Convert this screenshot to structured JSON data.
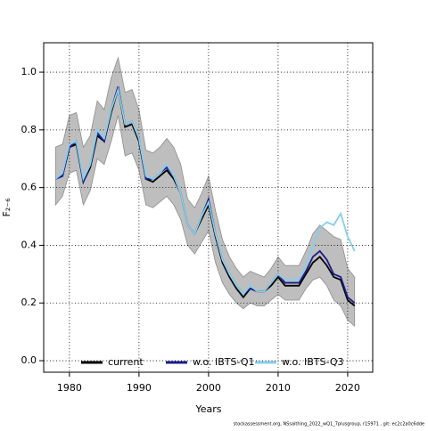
{
  "chart_data": {
    "type": "line",
    "xlabel": "Years",
    "ylabel": "F₂₋₆",
    "footer": "stockassessment.org, NSsaithing_2022_wQ1_7plusgroup, r15971 , git: ec2c2a0c6dde",
    "x": [
      1978,
      1979,
      1980,
      1981,
      1982,
      1983,
      1984,
      1985,
      1986,
      1987,
      1988,
      1989,
      1990,
      1991,
      1992,
      1993,
      1994,
      1995,
      1996,
      1997,
      1998,
      1999,
      2000,
      2001,
      2002,
      2003,
      2004,
      2005,
      2006,
      2007,
      2008,
      2009,
      2010,
      2011,
      2012,
      2013,
      2014,
      2015,
      2016,
      2017,
      2018,
      2019,
      2020,
      2021
    ],
    "xlim": [
      1976.3,
      2023.6
    ],
    "xticks": [
      1980,
      1990,
      2000,
      2010,
      2020
    ],
    "ylim": [
      -0.04,
      1.102
    ],
    "yticks": [
      {
        "value": 0,
        "label": "0.0"
      },
      {
        "value": 0.2,
        "label": "0.2"
      },
      {
        "value": 0.4,
        "label": "0.4"
      },
      {
        "value": 0.6,
        "label": "0.6"
      },
      {
        "value": 0.8,
        "label": "0.8"
      },
      {
        "value": 1,
        "label": "1.0"
      }
    ],
    "grid": true,
    "legend": "bottom",
    "band": {
      "color": "#bebebe",
      "upper": [
        0.74,
        0.75,
        0.85,
        0.86,
        0.74,
        0.78,
        0.9,
        0.87,
        0.98,
        1.05,
        0.93,
        0.94,
        0.87,
        0.73,
        0.72,
        0.74,
        0.77,
        0.74,
        0.68,
        0.56,
        0.53,
        0.58,
        0.64,
        0.52,
        0.42,
        0.36,
        0.32,
        0.29,
        0.31,
        0.3,
        0.29,
        0.32,
        0.36,
        0.33,
        0.33,
        0.33,
        0.38,
        0.44,
        0.47,
        0.45,
        0.43,
        0.42,
        0.32,
        0.29
      ],
      "lower": [
        0.54,
        0.57,
        0.65,
        0.66,
        0.54,
        0.59,
        0.7,
        0.68,
        0.76,
        0.85,
        0.71,
        0.72,
        0.66,
        0.54,
        0.53,
        0.55,
        0.57,
        0.54,
        0.49,
        0.4,
        0.37,
        0.41,
        0.45,
        0.34,
        0.27,
        0.23,
        0.2,
        0.18,
        0.2,
        0.19,
        0.19,
        0.21,
        0.23,
        0.21,
        0.21,
        0.21,
        0.25,
        0.28,
        0.29,
        0.26,
        0.21,
        0.19,
        0.14,
        0.12
      ]
    },
    "series": [
      {
        "name": "current",
        "color": "#000000",
        "values": [
          0.63,
          0.64,
          0.74,
          0.75,
          0.62,
          0.67,
          0.78,
          0.76,
          0.86,
          0.94,
          0.81,
          0.82,
          0.76,
          0.63,
          0.62,
          0.64,
          0.66,
          0.63,
          0.58,
          0.47,
          0.44,
          0.49,
          0.54,
          0.43,
          0.34,
          0.29,
          0.25,
          0.22,
          0.25,
          0.24,
          0.24,
          0.26,
          0.29,
          0.26,
          0.26,
          0.26,
          0.3,
          0.34,
          0.36,
          0.33,
          0.29,
          0.28,
          0.21,
          0.19
        ]
      },
      {
        "name": "w.o. IBTS-Q1",
        "color": "#1c1c8a",
        "values": [
          0.63,
          0.64,
          0.74,
          0.76,
          0.62,
          0.68,
          0.79,
          0.76,
          0.87,
          0.95,
          0.82,
          0.83,
          0.77,
          0.63,
          0.63,
          0.65,
          0.67,
          0.64,
          0.58,
          0.47,
          0.44,
          0.5,
          0.56,
          0.44,
          0.35,
          0.3,
          0.26,
          0.23,
          0.25,
          0.24,
          0.24,
          0.27,
          0.3,
          0.27,
          0.27,
          0.27,
          0.31,
          0.36,
          0.38,
          0.35,
          0.3,
          0.29,
          0.22,
          0.2
        ]
      },
      {
        "name": "w.o. IBTS-Q3",
        "color": "#87ceeb",
        "values": [
          0.63,
          0.65,
          0.75,
          0.76,
          0.63,
          0.68,
          0.8,
          0.77,
          0.87,
          0.94,
          0.82,
          0.83,
          0.77,
          0.64,
          0.63,
          0.65,
          0.68,
          0.64,
          0.58,
          0.47,
          0.44,
          0.5,
          0.55,
          0.44,
          0.35,
          0.3,
          0.26,
          0.23,
          0.26,
          0.24,
          0.24,
          0.27,
          0.3,
          0.28,
          0.28,
          0.28,
          0.33,
          0.4,
          0.46,
          0.48,
          0.47,
          0.51,
          0.43,
          0.38
        ]
      }
    ]
  }
}
